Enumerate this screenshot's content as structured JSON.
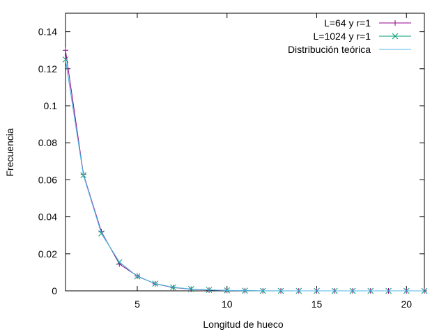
{
  "chart_data": {
    "type": "line",
    "title": "",
    "xlabel": "Longitud de hueco",
    "ylabel": "Frecuencia",
    "xlim": [
      1,
      21
    ],
    "ylim": [
      0,
      0.15
    ],
    "xticks": [
      5,
      10,
      15,
      20
    ],
    "yticks": [
      0,
      0.02,
      0.04,
      0.06,
      0.08,
      0.1,
      0.12,
      0.14
    ],
    "ytick_labels": [
      "0",
      "0.02",
      "0.04",
      "0.06",
      "0.08",
      "0.1",
      "0.12",
      "0.14"
    ],
    "grid": false,
    "legend_position": "top-right",
    "series": [
      {
        "name": "L=64 y r=1",
        "color": "#94008f",
        "marker": "plus",
        "x": [
          1,
          2,
          3,
          4,
          5,
          6,
          7,
          8,
          9,
          10,
          11,
          12,
          13,
          14,
          15,
          16,
          17,
          18,
          19,
          20,
          21
        ],
        "y": [
          0.13,
          0.063,
          0.032,
          0.0145,
          0.008,
          0.0038,
          0.0018,
          0.0009,
          0.0004,
          0.0002,
          0.0001,
          0.0,
          0.0,
          0.0,
          0.0,
          0.0,
          0.0,
          0.0,
          0.0,
          0.0,
          0.0
        ]
      },
      {
        "name": "L=1024 y r=1",
        "color": "#009e73",
        "marker": "cross",
        "x": [
          1,
          2,
          3,
          4,
          5,
          6,
          7,
          8,
          9,
          10,
          11,
          12,
          13,
          14,
          15,
          16,
          17,
          18,
          19,
          20,
          21
        ],
        "y": [
          0.125,
          0.0625,
          0.031,
          0.0155,
          0.0078,
          0.0039,
          0.0019,
          0.001,
          0.0005,
          0.00025,
          0.0001,
          0.0,
          0.0,
          0.0,
          0.0,
          0.0,
          0.0,
          0.0,
          0.0,
          0.0,
          0.0
        ]
      },
      {
        "name": "Distribución teórica",
        "color": "#56b4e9",
        "marker": "none",
        "x": [
          1,
          2,
          3,
          4,
          5,
          6,
          7,
          8,
          9,
          10,
          11,
          12,
          13,
          14,
          15,
          16,
          17,
          18,
          19,
          20,
          21
        ],
        "y": [
          0.125,
          0.0625,
          0.03125,
          0.015625,
          0.0078125,
          0.00390625,
          0.001953125,
          0.0009765625,
          0.00048828125,
          0.000244140625,
          0.0001220703125,
          6.103515625e-05,
          3.0517578125e-05,
          1.52587890625e-05,
          7.62939453125e-06,
          3.814697265625e-06,
          1.9073486328125e-06,
          9.5367431640625e-07,
          4.76837158203125e-07,
          2.384185791015625e-07,
          1.1920928955078125e-07
        ]
      }
    ]
  }
}
